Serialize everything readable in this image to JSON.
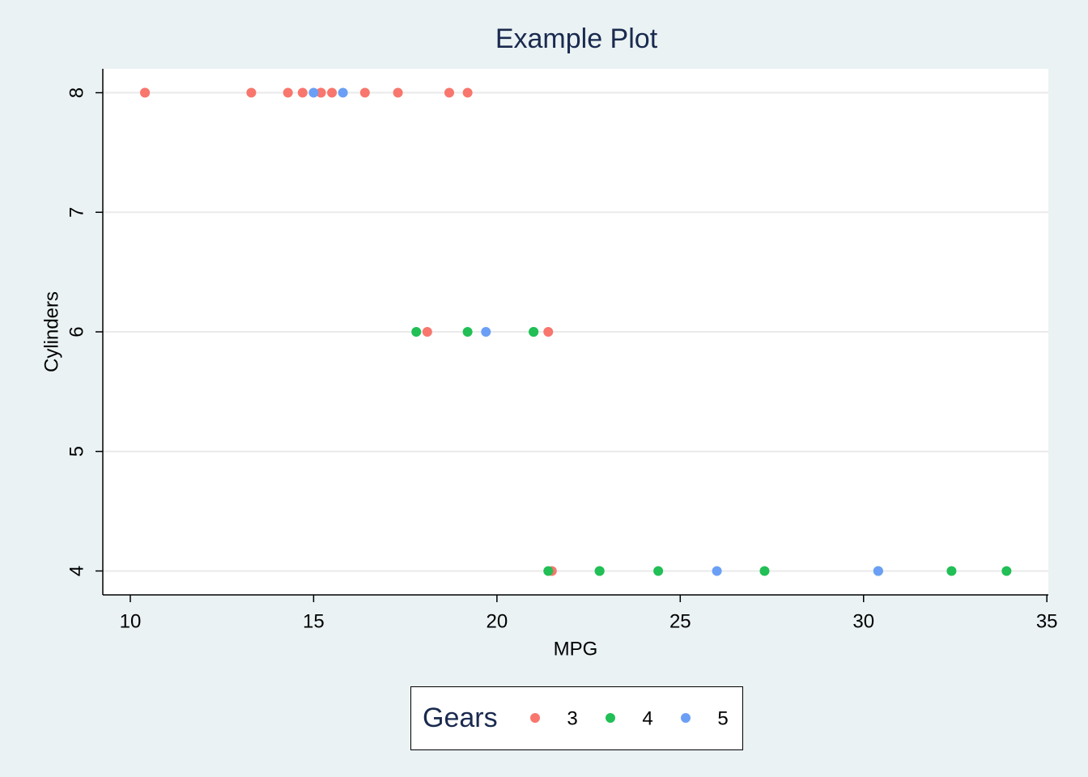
{
  "chart_data": {
    "type": "scatter",
    "title": "Example Plot",
    "x_label": "MPG",
    "y_label": "Cylinders",
    "xlim": [
      9.25,
      35.04
    ],
    "xticks": [
      10,
      15,
      20,
      25,
      30,
      35
    ],
    "ylim": [
      3.8,
      8.2
    ],
    "yticks": [
      4,
      5,
      6,
      7,
      8
    ],
    "grid": true,
    "legend_title": "Gears",
    "legend_position": "bottom",
    "series": [
      {
        "name": "3",
        "color": "#f8766d",
        "x": [
          21.4,
          18.7,
          18.1,
          14.3,
          16.4,
          17.3,
          15.2,
          10.4,
          10.4,
          14.7,
          21.5,
          15.5,
          15.2,
          13.3,
          19.2
        ],
        "y": [
          6,
          8,
          6,
          8,
          8,
          8,
          8,
          8,
          8,
          8,
          4,
          8,
          8,
          8,
          8
        ]
      },
      {
        "name": "4",
        "color": "#21bf55",
        "x": [
          21.0,
          21.0,
          22.8,
          24.4,
          22.8,
          19.2,
          17.8,
          32.4,
          30.4,
          33.9,
          27.3,
          21.4
        ],
        "y": [
          6,
          6,
          4,
          4,
          4,
          6,
          6,
          4,
          4,
          4,
          4,
          4
        ]
      },
      {
        "name": "5",
        "color": "#6b9ff5",
        "x": [
          26.0,
          30.4,
          15.8,
          19.7,
          15.0
        ],
        "y": [
          4,
          4,
          8,
          6,
          8
        ]
      }
    ]
  }
}
